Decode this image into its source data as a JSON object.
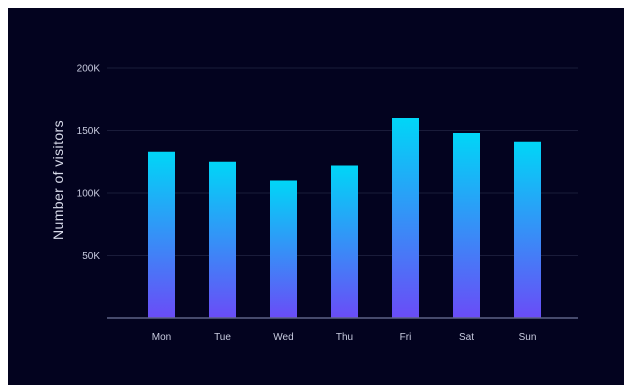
{
  "chart_data": {
    "type": "bar",
    "title": "",
    "xlabel": "",
    "ylabel": "Number of visitors",
    "categories": [
      "Mon",
      "Tue",
      "Wed",
      "Thu",
      "Fri",
      "Sat",
      "Sun"
    ],
    "values": [
      133000,
      125000,
      110000,
      122000,
      160000,
      148000,
      141000
    ],
    "ylim": [
      0,
      200000
    ],
    "yticks": [
      {
        "value": 50000,
        "label": "50K"
      },
      {
        "value": 100000,
        "label": "100K"
      },
      {
        "value": 150000,
        "label": "150K"
      },
      {
        "value": 200000,
        "label": "200K"
      }
    ],
    "grid": true,
    "legend": "none",
    "colors": {
      "background": "#03031f",
      "bar_top": "#00d6f7",
      "bar_bottom": "#6a4cf7",
      "grid": "#1a1c3a",
      "axis": "#5d6285",
      "text": "#c9cce0"
    }
  }
}
